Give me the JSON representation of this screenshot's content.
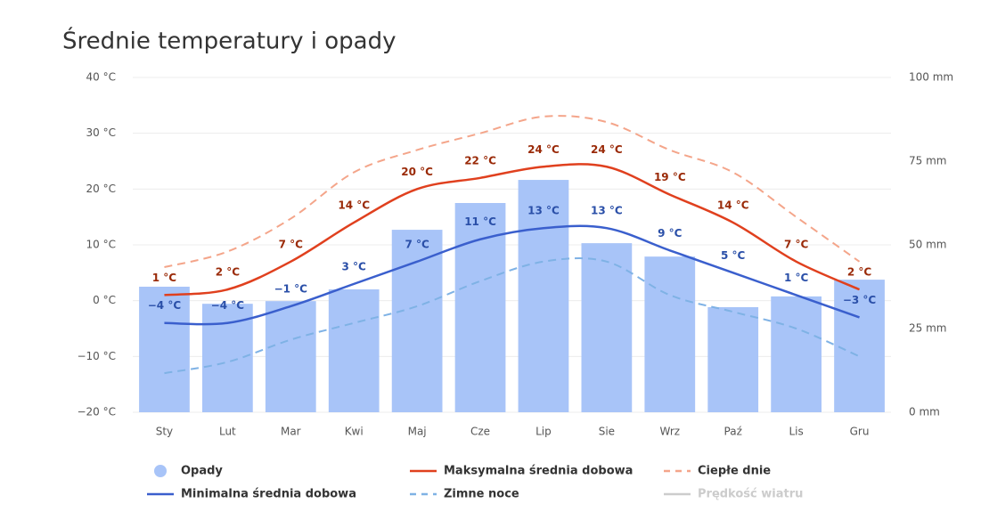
{
  "chart_data": {
    "type": "combo",
    "title": "Średnie temperatury i opady",
    "categories": [
      "Sty",
      "Lut",
      "Mar",
      "Kwi",
      "Maj",
      "Cze",
      "Lip",
      "Sie",
      "Wrz",
      "Paź",
      "Lis",
      "Gru"
    ],
    "ylim": [
      -20,
      40
    ],
    "yticks": [
      {
        "value": -20,
        "label": "−20 °C"
      },
      {
        "value": -10,
        "label": "−10 °C"
      },
      {
        "value": 0,
        "label": "0 °C"
      },
      {
        "value": 10,
        "label": "10 °C"
      },
      {
        "value": 20,
        "label": "20 °C"
      },
      {
        "value": 30,
        "label": "30 °C"
      },
      {
        "value": 40,
        "label": "40 °C"
      }
    ],
    "y2lim": [
      0,
      100
    ],
    "y2ticks": [
      {
        "value": 0,
        "label": "0 mm"
      },
      {
        "value": 25,
        "label": "25 mm"
      },
      {
        "value": 50,
        "label": "50 mm"
      },
      {
        "value": 75,
        "label": "75 mm"
      },
      {
        "value": 100,
        "label": "100 mm"
      }
    ],
    "grid": true,
    "series": [
      {
        "name": "Opady",
        "type": "bar",
        "axis": "y2",
        "color": "#a8c4f8",
        "values": [
          37.5,
          32.4,
          33.2,
          36.7,
          54.5,
          62.5,
          69.4,
          50.5,
          46.5,
          31.4,
          34.6,
          39.6
        ]
      },
      {
        "name": "Maksymalna średnia dobowa",
        "type": "line",
        "color": "#e0401e",
        "label_color": "#9a2a08",
        "values": [
          1,
          2,
          7,
          14,
          20,
          22,
          24,
          24,
          19,
          14,
          7,
          2
        ],
        "value_labels": [
          "1 °C",
          "2 °C",
          "7 °C",
          "14 °C",
          "20 °C",
          "22 °C",
          "24 °C",
          "24 °C",
          "19 °C",
          "14 °C",
          "7 °C",
          "2 °C"
        ]
      },
      {
        "name": "Ciepłe dnie",
        "type": "line",
        "dashed": true,
        "color": "#f4a58a",
        "values": [
          6,
          8.8,
          14.7,
          23,
          27,
          30,
          33,
          32,
          27,
          23,
          15,
          7
        ]
      },
      {
        "name": "Minimalna średnia dobowa",
        "type": "line",
        "color": "#3a5fcd",
        "label_color": "#2a4fa8",
        "values": [
          -4,
          -4,
          -1,
          3,
          7,
          11,
          13,
          13,
          9,
          5,
          1,
          -3
        ],
        "value_labels": [
          "−4 °C",
          "−4 °C",
          "−1 °C",
          "3 °C",
          "7 °C",
          "11 °C",
          "13 °C",
          "13 °C",
          "9 °C",
          "5 °C",
          "1 °C",
          "−3 °C"
        ]
      },
      {
        "name": "Zimne noce",
        "type": "line",
        "dashed": true,
        "color": "#7fb2e5",
        "values": [
          -13,
          -11,
          -7,
          -4,
          -1,
          3.5,
          7,
          7,
          1,
          -2,
          -5,
          -10
        ]
      }
    ],
    "disabled_series": [
      {
        "name": "Prędkość wiatru",
        "color": "#cccccc"
      }
    ]
  }
}
